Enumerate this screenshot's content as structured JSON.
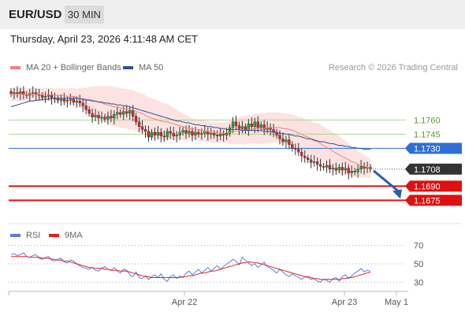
{
  "header": {
    "symbol": "EUR/USD",
    "timeframe": "30 MIN"
  },
  "datetime": "Thursday, April 23, 2026 4:11:48 AM CET",
  "legend": {
    "ma20": {
      "label": "MA 20 + Bollinger Bands",
      "color": "#f08080"
    },
    "ma50": {
      "label": "MA 50",
      "color": "#2a4f9a"
    }
  },
  "credit": "Research © 2026 Trading Central",
  "rsi_legend": {
    "rsi": {
      "label": "RSI",
      "color": "#5b7fd6"
    },
    "ma9": {
      "label": "9MA",
      "color": "#e02020"
    }
  },
  "colors": {
    "up": "#2ca02c",
    "down": "#d62728",
    "band": "#fde2e2",
    "resistance": "#a9d88f",
    "pivot": "#2e6fd6",
    "support": "#e01010",
    "current": "#333333",
    "arrow": "#2a5fa8"
  },
  "chart_data": [
    {
      "type": "candlestick",
      "ylim": [
        1.1652,
        1.1802
      ],
      "x_ticks": [
        "Apr 22",
        "Apr 23",
        "May 1"
      ],
      "levels": [
        {
          "value": 1.176,
          "label": "1.1760",
          "kind": "resistance"
        },
        {
          "value": 1.1745,
          "label": "1.1745",
          "kind": "resistance"
        },
        {
          "value": 1.173,
          "label": "1.1730",
          "kind": "pivot"
        },
        {
          "value": 1.1708,
          "label": "1.1708",
          "kind": "current"
        },
        {
          "value": 1.169,
          "label": "1.1690",
          "kind": "support"
        },
        {
          "value": 1.1675,
          "label": "1.1675",
          "kind": "support"
        }
      ],
      "forecast": {
        "from": 1.1708,
        "to": 1.1675,
        "direction": "down"
      },
      "close": [
        1.1788,
        1.1789,
        1.1788,
        1.179,
        1.1787,
        1.1786,
        1.1788,
        1.1789,
        1.1787,
        1.1786,
        1.1784,
        1.1785,
        1.1786,
        1.1783,
        1.1783,
        1.1781,
        1.1782,
        1.178,
        1.1781,
        1.1782,
        1.1779,
        1.178,
        1.1778,
        1.1775,
        1.1771,
        1.1767,
        1.1763,
        1.1765,
        1.1762,
        1.1763,
        1.1761,
        1.1764,
        1.1762,
        1.1766,
        1.1768,
        1.1766,
        1.1769,
        1.1767,
        1.177,
        1.1764,
        1.1758,
        1.1753,
        1.175,
        1.1748,
        1.1742,
        1.1747,
        1.1744,
        1.1747,
        1.1743,
        1.1742,
        1.1748,
        1.1746,
        1.1743,
        1.1744,
        1.1747,
        1.1749,
        1.1746,
        1.1748,
        1.1744,
        1.1747,
        1.1745,
        1.1746,
        1.1748,
        1.1745,
        1.1746,
        1.1744,
        1.1743,
        1.1745,
        1.1744,
        1.1746,
        1.1752,
        1.1758,
        1.1754,
        1.1751,
        1.1753,
        1.1749,
        1.1756,
        1.1753,
        1.1758,
        1.1752,
        1.1755,
        1.175,
        1.1752,
        1.175,
        1.1747,
        1.1744,
        1.174,
        1.1737,
        1.1739,
        1.1734,
        1.173,
        1.1729,
        1.1726,
        1.1722,
        1.172,
        1.1718,
        1.1715,
        1.1716,
        1.1713,
        1.1711,
        1.171,
        1.1712,
        1.1708,
        1.1709,
        1.1707,
        1.171,
        1.1707,
        1.1709,
        1.1704,
        1.1706,
        1.1705,
        1.1708,
        1.1711,
        1.1709,
        1.171,
        1.1708
      ],
      "ma20": [
        1.1787,
        1.1787,
        1.1787,
        1.1787,
        1.1787,
        1.1787,
        1.1787,
        1.1787,
        1.1787,
        1.1787,
        1.1787,
        1.1787,
        1.1787,
        1.1787,
        1.1786,
        1.1786,
        1.1786,
        1.1786,
        1.1785,
        1.1785,
        1.1785,
        1.1784,
        1.1784,
        1.1783,
        1.1782,
        1.1782,
        1.1781,
        1.178,
        1.1779,
        1.1778,
        1.1777,
        1.1776,
        1.1775,
        1.1774,
        1.1774,
        1.1773,
        1.1772,
        1.1772,
        1.1771,
        1.1771,
        1.1769,
        1.1768,
        1.1767,
        1.1765,
        1.1763,
        1.1762,
        1.1761,
        1.176,
        1.1759,
        1.1758,
        1.1758,
        1.1757,
        1.1756,
        1.1755,
        1.1754,
        1.1753,
        1.1752,
        1.1751,
        1.1751,
        1.175,
        1.1749,
        1.1749,
        1.1748,
        1.1748,
        1.1747,
        1.1747,
        1.1747,
        1.1747,
        1.1746,
        1.1747,
        1.1747,
        1.1748,
        1.1748,
        1.1749,
        1.1749,
        1.1749,
        1.175,
        1.175,
        1.1751,
        1.1751,
        1.1751,
        1.1751,
        1.1752,
        1.1752,
        1.1752,
        1.1752,
        1.1752,
        1.1751,
        1.1751,
        1.175,
        1.1749,
        1.1748,
        1.1746,
        1.1745,
        1.1743,
        1.1742,
        1.174,
        1.1738,
        1.1737,
        1.1735,
        1.1733,
        1.1731,
        1.1729,
        1.1727,
        1.1725,
        1.1723,
        1.1721,
        1.172,
        1.1718,
        1.1716,
        1.1715,
        1.1713,
        1.1712,
        1.1711,
        1.171,
        1.1709
      ],
      "bb_width": [
        0.0007,
        0.0007,
        0.0007,
        0.0007,
        0.0007,
        0.0007,
        0.0007,
        0.0007,
        0.0007,
        0.0007,
        0.0007,
        0.0007,
        0.0007,
        0.0007,
        0.0007,
        0.0008,
        0.0008,
        0.0008,
        0.0008,
        0.0009,
        0.0009,
        0.0009,
        0.001,
        0.0011,
        0.0012,
        0.0013,
        0.0014,
        0.0016,
        0.0017,
        0.0018,
        0.0019,
        0.002,
        0.0021,
        0.0021,
        0.0021,
        0.0021,
        0.0021,
        0.0021,
        0.0021,
        0.0021,
        0.0021,
        0.0021,
        0.0021,
        0.0021,
        0.0021,
        0.0021,
        0.0021,
        0.0021,
        0.002,
        0.002,
        0.0019,
        0.0018,
        0.0017,
        0.0016,
        0.0015,
        0.0014,
        0.0013,
        0.0012,
        0.0011,
        0.0011,
        0.0011,
        0.0011,
        0.0011,
        0.0011,
        0.0011,
        0.0011,
        0.0011,
        0.0011,
        0.0011,
        0.0011,
        0.0012,
        0.0013,
        0.0014,
        0.0014,
        0.0015,
        0.0015,
        0.0015,
        0.0015,
        0.0016,
        0.0016,
        0.0016,
        0.0016,
        0.0016,
        0.0016,
        0.0016,
        0.0016,
        0.0016,
        0.0016,
        0.0016,
        0.0016,
        0.0017,
        0.0017,
        0.0017,
        0.0018,
        0.0018,
        0.0018,
        0.0019,
        0.0019,
        0.002,
        0.002,
        0.002,
        0.002,
        0.002,
        0.002,
        0.002,
        0.002,
        0.0019,
        0.0018,
        0.0017,
        0.0016,
        0.0015,
        0.0014,
        0.0013,
        0.0012,
        0.0011,
        0.001
      ],
      "ma50": [
        1.1774,
        1.1775,
        1.1776,
        1.1777,
        1.1778,
        1.1779,
        1.178,
        1.178,
        1.1781,
        1.1781,
        1.1782,
        1.1782,
        1.1782,
        1.1783,
        1.1783,
        1.1783,
        1.1783,
        1.1783,
        1.1783,
        1.1783,
        1.1783,
        1.1783,
        1.1782,
        1.1782,
        1.1781,
        1.1781,
        1.178,
        1.178,
        1.1779,
        1.1779,
        1.1778,
        1.1778,
        1.1777,
        1.1777,
        1.1776,
        1.1776,
        1.1775,
        1.1775,
        1.1774,
        1.1773,
        1.1772,
        1.1771,
        1.177,
        1.1769,
        1.1768,
        1.1767,
        1.1766,
        1.1765,
        1.1764,
        1.1763,
        1.1762,
        1.1761,
        1.176,
        1.1759,
        1.1759,
        1.1758,
        1.1757,
        1.1757,
        1.1756,
        1.1755,
        1.1755,
        1.1754,
        1.1754,
        1.1753,
        1.1753,
        1.1752,
        1.1752,
        1.1751,
        1.1751,
        1.175,
        1.175,
        1.175,
        1.175,
        1.175,
        1.1749,
        1.1749,
        1.1749,
        1.1749,
        1.1749,
        1.1749,
        1.1749,
        1.1748,
        1.1748,
        1.1748,
        1.1747,
        1.1747,
        1.1746,
        1.1746,
        1.1745,
        1.1745,
        1.1744,
        1.1743,
        1.1743,
        1.1742,
        1.1741,
        1.174,
        1.174,
        1.1739,
        1.1738,
        1.1737,
        1.1737,
        1.1736,
        1.1735,
        1.1735,
        1.1734,
        1.1733,
        1.1733,
        1.1732,
        1.1732,
        1.1731,
        1.1731,
        1.173,
        1.173,
        1.1729,
        1.1729,
        1.1729
      ]
    },
    {
      "type": "line",
      "ylim": [
        20,
        80
      ],
      "y_ticks": [
        70,
        50,
        30
      ],
      "rsi": [
        60,
        61,
        59,
        60,
        62,
        58,
        57,
        59,
        60,
        56,
        55,
        57,
        58,
        54,
        53,
        55,
        56,
        52,
        51,
        54,
        53,
        50,
        48,
        46,
        45,
        44,
        46,
        43,
        42,
        45,
        47,
        44,
        43,
        46,
        42,
        40,
        44,
        43,
        38,
        36,
        41,
        35,
        34,
        37,
        33,
        36,
        38,
        35,
        39,
        33,
        31,
        36,
        38,
        34,
        37,
        35,
        40,
        42,
        38,
        41,
        44,
        40,
        43,
        46,
        42,
        45,
        48,
        44,
        47,
        50,
        52,
        55,
        53,
        49,
        57,
        54,
        51,
        48,
        50,
        46,
        49,
        52,
        47,
        45,
        43,
        40,
        44,
        41,
        38,
        36,
        39,
        37,
        35,
        33,
        36,
        35,
        33,
        34,
        31,
        30,
        33,
        32,
        30,
        34,
        35,
        31,
        36,
        38,
        34,
        37,
        40,
        42,
        45,
        41,
        43,
        42
      ],
      "ma9": [
        58,
        58,
        58,
        58,
        58,
        58,
        57,
        57,
        57,
        57,
        56,
        56,
        56,
        55,
        55,
        54,
        54,
        53,
        53,
        52,
        51,
        50,
        49,
        48,
        47,
        46,
        46,
        45,
        45,
        45,
        44,
        44,
        43,
        43,
        43,
        42,
        42,
        42,
        41,
        40,
        39,
        38,
        37,
        36,
        36,
        35,
        35,
        35,
        35,
        35,
        35,
        35,
        35,
        35,
        35,
        36,
        36,
        37,
        37,
        38,
        39,
        40,
        40,
        41,
        42,
        42,
        43,
        44,
        45,
        46,
        47,
        48,
        49,
        50,
        51,
        51,
        52,
        52,
        51,
        51,
        50,
        49,
        48,
        47,
        46,
        45,
        44,
        43,
        42,
        41,
        40,
        39,
        38,
        37,
        36,
        36,
        35,
        34,
        34,
        33,
        33,
        33,
        33,
        33,
        33,
        33,
        34,
        34,
        35,
        35,
        36,
        37,
        38,
        39,
        40,
        41
      ]
    }
  ]
}
